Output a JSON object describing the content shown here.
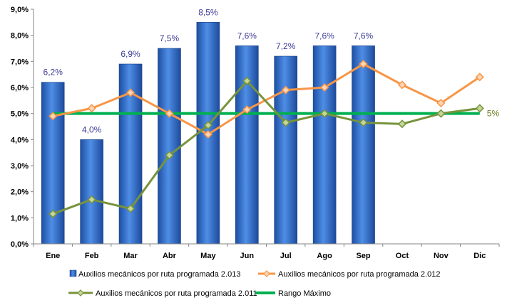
{
  "chart_data": {
    "type": "bar",
    "categories": [
      "Ene",
      "Feb",
      "Mar",
      "Abr",
      "May",
      "Jun",
      "Jul",
      "Ago",
      "Sep",
      "Oct",
      "Nov",
      "Dic"
    ],
    "ylim": [
      0,
      9
    ],
    "yticks": [
      "0,0%",
      "1,0%",
      "2,0%",
      "3,0%",
      "4,0%",
      "5,0%",
      "6,0%",
      "7,0%",
      "8,0%",
      "9,0%"
    ],
    "grid": false,
    "legend_position": "bottom",
    "series": [
      {
        "name": "Auxilios mecánicos por ruta programada 2.013",
        "type": "bar",
        "color": "#2e6fd1",
        "values": [
          6.2,
          4.0,
          6.9,
          7.5,
          8.5,
          7.6,
          7.2,
          7.6,
          7.6,
          null,
          null,
          null
        ],
        "labels": [
          "6,2%",
          "4,0%",
          "6,9%",
          "7,5%",
          "8,5%",
          "7,6%",
          "7,2%",
          "7,6%",
          "7,6%",
          null,
          null,
          null
        ]
      },
      {
        "name": "Auxilios mecánicos por ruta programada 2.012",
        "type": "line",
        "color": "#f79646",
        "values": [
          4.9,
          5.2,
          5.8,
          5.0,
          4.2,
          5.15,
          5.9,
          6.0,
          6.9,
          6.1,
          5.4,
          6.4
        ]
      },
      {
        "name": "Auxilios mecánicos por ruta programada 2.011",
        "type": "line",
        "color": "#77933c",
        "values": [
          1.15,
          1.7,
          1.35,
          3.4,
          4.55,
          6.25,
          4.65,
          5.0,
          4.65,
          4.6,
          5.0,
          5.2
        ]
      },
      {
        "name": "Rango Máximo",
        "type": "line",
        "color": "#00b050",
        "values": [
          5,
          5,
          5,
          5,
          5,
          5,
          5,
          5,
          5,
          5,
          5,
          5
        ],
        "end_label": "5%"
      }
    ]
  }
}
